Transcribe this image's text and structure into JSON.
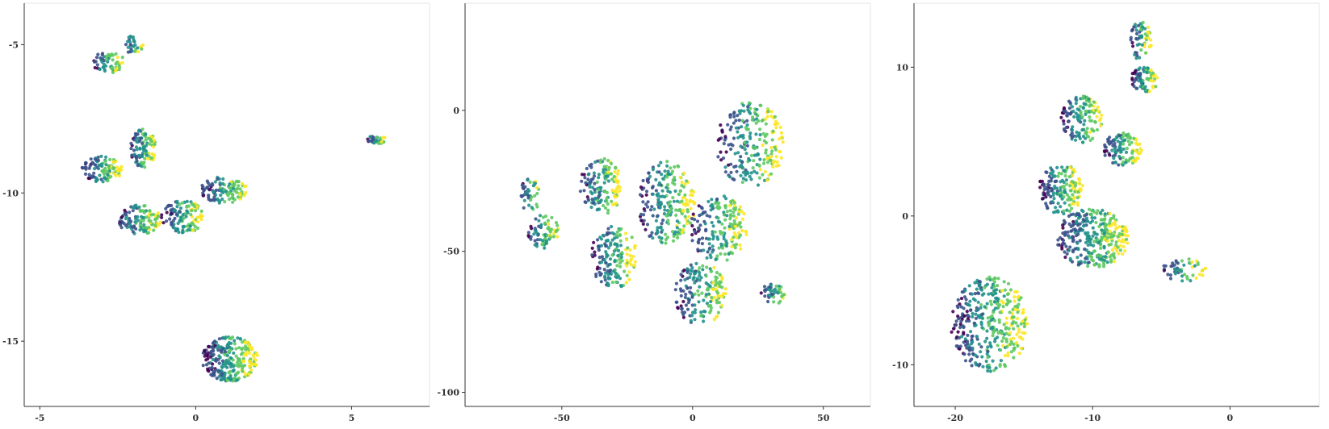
{
  "chart_data": [
    {
      "type": "scatter",
      "xlim": [
        -5.5,
        7.5
      ],
      "ylim": [
        -17.2,
        -3.6
      ],
      "x_ticks": [
        -5,
        0,
        5
      ],
      "y_ticks": [
        -5,
        -10,
        -15
      ],
      "x_tick_labels": [
        "-5",
        "0",
        "5"
      ],
      "y_tick_labels": [
        "-5",
        "-10",
        "-15"
      ],
      "grid": false,
      "colormap": "viridis",
      "colors": [
        "#440154",
        "#3b528b",
        "#21918c",
        "#5ec962",
        "#fde725"
      ],
      "clusters": [
        {
          "cx": -2.8,
          "cy": -5.6,
          "rx": 0.55,
          "ry": 0.35,
          "n": 60
        },
        {
          "cx": -2.0,
          "cy": -5.0,
          "rx": 0.35,
          "ry": 0.3,
          "n": 30
        },
        {
          "cx": -3.0,
          "cy": -9.2,
          "rx": 0.65,
          "ry": 0.45,
          "n": 110
        },
        {
          "cx": -1.7,
          "cy": -8.5,
          "rx": 0.45,
          "ry": 0.65,
          "n": 100
        },
        {
          "cx": -1.8,
          "cy": -10.9,
          "rx": 0.7,
          "ry": 0.5,
          "n": 120
        },
        {
          "cx": -0.4,
          "cy": -10.8,
          "rx": 0.7,
          "ry": 0.55,
          "n": 120
        },
        {
          "cx": 0.9,
          "cy": -9.9,
          "rx": 0.75,
          "ry": 0.45,
          "n": 110
        },
        {
          "cx": 5.8,
          "cy": -8.2,
          "rx": 0.35,
          "ry": 0.15,
          "n": 30
        },
        {
          "cx": 1.1,
          "cy": -15.6,
          "rx": 0.9,
          "ry": 0.75,
          "n": 260
        }
      ]
    },
    {
      "type": "scatter",
      "xlim": [
        -87,
        68
      ],
      "ylim": [
        -105,
        38
      ],
      "x_ticks": [
        -50,
        0,
        50
      ],
      "y_ticks": [
        0,
        -50,
        -100
      ],
      "x_tick_labels": [
        "-50",
        "0",
        "50"
      ],
      "y_tick_labels": [
        "0",
        "-50",
        "-100"
      ],
      "grid": false,
      "colormap": "viridis",
      "colors": [
        "#440154",
        "#3b528b",
        "#21918c",
        "#5ec962",
        "#fde725"
      ],
      "clusters": [
        {
          "cx": -62,
          "cy": -30,
          "rx": 4,
          "ry": 6,
          "n": 40
        },
        {
          "cx": -57,
          "cy": -43,
          "rx": 6,
          "ry": 6,
          "n": 70
        },
        {
          "cx": -35,
          "cy": -27,
          "rx": 8,
          "ry": 10,
          "n": 140
        },
        {
          "cx": -30,
          "cy": -52,
          "rx": 9,
          "ry": 11,
          "n": 160
        },
        {
          "cx": -10,
          "cy": -33,
          "rx": 11,
          "ry": 15,
          "n": 220
        },
        {
          "cx": 10,
          "cy": -42,
          "rx": 11,
          "ry": 12,
          "n": 180
        },
        {
          "cx": 3,
          "cy": -65,
          "rx": 10,
          "ry": 11,
          "n": 170
        },
        {
          "cx": 22,
          "cy": -12,
          "rx": 13,
          "ry": 15,
          "n": 230
        },
        {
          "cx": 31,
          "cy": -65,
          "rx": 5,
          "ry": 4,
          "n": 45
        }
      ]
    },
    {
      "type": "scatter",
      "xlim": [
        -23,
        6.5
      ],
      "ylim": [
        -12.8,
        14.3
      ],
      "x_ticks": [
        -20,
        -10,
        0
      ],
      "y_ticks": [
        10,
        0,
        -10
      ],
      "x_tick_labels": [
        "-20",
        "-10",
        "0"
      ],
      "y_tick_labels": [
        "10",
        "0",
        "-10"
      ],
      "grid": false,
      "colormap": "viridis",
      "colors": [
        "#440154",
        "#3b528b",
        "#21918c",
        "#5ec962",
        "#fde725"
      ],
      "clusters": [
        {
          "cx": -6.5,
          "cy": 11.8,
          "rx": 0.8,
          "ry": 1.3,
          "n": 60
        },
        {
          "cx": -6.2,
          "cy": 9.2,
          "rx": 1.0,
          "ry": 0.9,
          "n": 80
        },
        {
          "cx": -10.8,
          "cy": 6.5,
          "rx": 1.5,
          "ry": 1.6,
          "n": 140
        },
        {
          "cx": -7.8,
          "cy": 4.5,
          "rx": 1.4,
          "ry": 1.1,
          "n": 110
        },
        {
          "cx": -12.3,
          "cy": 1.8,
          "rx": 1.6,
          "ry": 1.7,
          "n": 160
        },
        {
          "cx": -10.0,
          "cy": -1.5,
          "rx": 2.6,
          "ry": 2.0,
          "n": 320
        },
        {
          "cx": -3.3,
          "cy": -3.6,
          "rx": 1.6,
          "ry": 0.8,
          "n": 50
        },
        {
          "cx": -17.5,
          "cy": -7.3,
          "rx": 2.8,
          "ry": 3.2,
          "n": 380
        }
      ]
    }
  ]
}
